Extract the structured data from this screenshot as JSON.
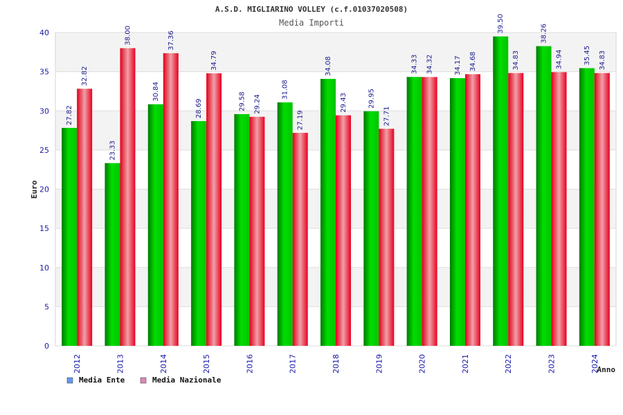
{
  "chart_data": {
    "type": "bar",
    "title": "A.S.D. MIGLIARINO VOLLEY (c.f.01037020508)",
    "subtitle": "Media Importi",
    "xlabel": "Anno",
    "ylabel": "Euro",
    "ylim": [
      0,
      40
    ],
    "yticks": [
      "0",
      "5",
      "10",
      "15",
      "20",
      "25",
      "30",
      "35",
      "40"
    ],
    "grid": true,
    "legend_position": "bottom-left",
    "categories": [
      "2012",
      "2013",
      "2014",
      "2015",
      "2016",
      "2017",
      "2018",
      "2019",
      "2020",
      "2021",
      "2022",
      "2023",
      "2024"
    ],
    "series": [
      {
        "name": "Media Ente",
        "color": "#00cc00",
        "legend_color": "#6699ee",
        "values": [
          27.82,
          23.33,
          30.84,
          28.69,
          29.58,
          31.08,
          34.08,
          29.95,
          34.33,
          34.17,
          39.5,
          38.26,
          35.45
        ],
        "labels": [
          "27.82",
          "23.33",
          "30.84",
          "28.69",
          "29.58",
          "31.08",
          "34.08",
          "29.95",
          "34.33",
          "34.17",
          "39.50",
          "38.26",
          "35.45"
        ]
      },
      {
        "name": "Media Nazionale",
        "color": "#ee2233",
        "legend_color": "#dd88bb",
        "values": [
          32.82,
          38.0,
          37.36,
          34.79,
          29.24,
          27.19,
          29.43,
          27.71,
          34.32,
          34.68,
          34.83,
          34.94,
          34.83
        ],
        "labels": [
          "32.82",
          "38.00",
          "37.36",
          "34.79",
          "29.24",
          "27.19",
          "29.43",
          "27.71",
          "34.32",
          "34.68",
          "34.83",
          "34.94",
          "34.83"
        ]
      }
    ]
  }
}
